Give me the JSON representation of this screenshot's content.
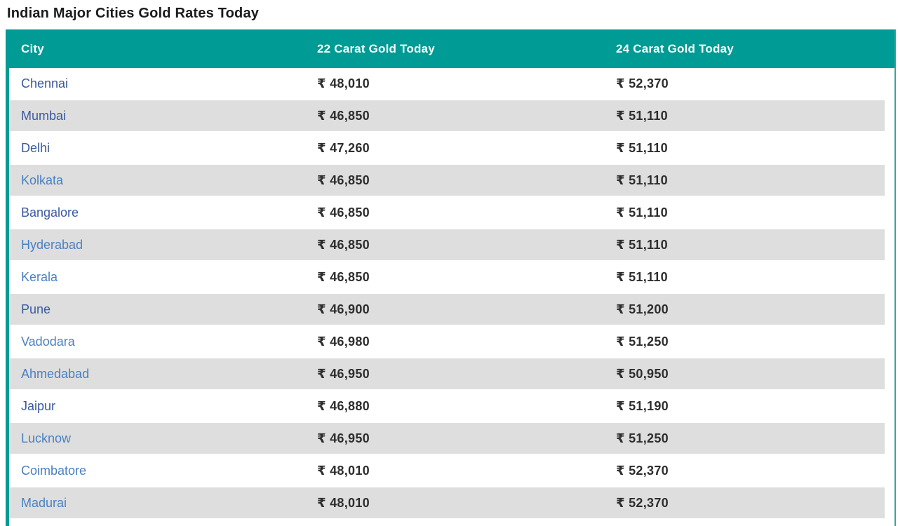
{
  "page": {
    "title": "Indian Major Cities Gold Rates Today"
  },
  "theme": {
    "header_bg": "#009b94",
    "stripe_bg": "#dedede",
    "table_border_left": "#009b94",
    "table_border_right": "#35a59e",
    "title_color": "#1b1b1b",
    "value_color": "#2d2d2d",
    "link_color_dark": "#3a5a9f",
    "link_color_light": "#4a80c2"
  },
  "table": {
    "columns": [
      {
        "label": "City"
      },
      {
        "label": "22 Carat Gold Today"
      },
      {
        "label": "24 Carat Gold Today"
      }
    ],
    "rows": [
      {
        "city": "Chennai",
        "k22": "₹ 48,010",
        "k24": "₹ 52,370",
        "variant": "dark"
      },
      {
        "city": "Mumbai",
        "k22": "₹ 46,850",
        "k24": "₹ 51,110",
        "variant": "dark"
      },
      {
        "city": "Delhi",
        "k22": "₹ 47,260",
        "k24": "₹ 51,110",
        "variant": "dark"
      },
      {
        "city": "Kolkata",
        "k22": "₹ 46,850",
        "k24": "₹ 51,110",
        "variant": "light"
      },
      {
        "city": "Bangalore",
        "k22": "₹ 46,850",
        "k24": "₹ 51,110",
        "variant": "dark"
      },
      {
        "city": "Hyderabad",
        "k22": "₹ 46,850",
        "k24": "₹ 51,110",
        "variant": "light"
      },
      {
        "city": "Kerala",
        "k22": "₹ 46,850",
        "k24": "₹ 51,110",
        "variant": "light"
      },
      {
        "city": "Pune",
        "k22": "₹ 46,900",
        "k24": "₹ 51,200",
        "variant": "dark"
      },
      {
        "city": "Vadodara",
        "k22": "₹ 46,980",
        "k24": "₹ 51,250",
        "variant": "light"
      },
      {
        "city": "Ahmedabad",
        "k22": "₹ 46,950",
        "k24": "₹ 50,950",
        "variant": "light"
      },
      {
        "city": "Jaipur",
        "k22": "₹ 46,880",
        "k24": "₹ 51,190",
        "variant": "dark"
      },
      {
        "city": "Lucknow",
        "k22": "₹ 46,950",
        "k24": "₹ 51,250",
        "variant": "light"
      },
      {
        "city": "Coimbatore",
        "k22": "₹ 48,010",
        "k24": "₹ 52,370",
        "variant": "light"
      },
      {
        "city": "Madurai",
        "k22": "₹ 48,010",
        "k24": "₹ 52,370",
        "variant": "light"
      }
    ]
  }
}
